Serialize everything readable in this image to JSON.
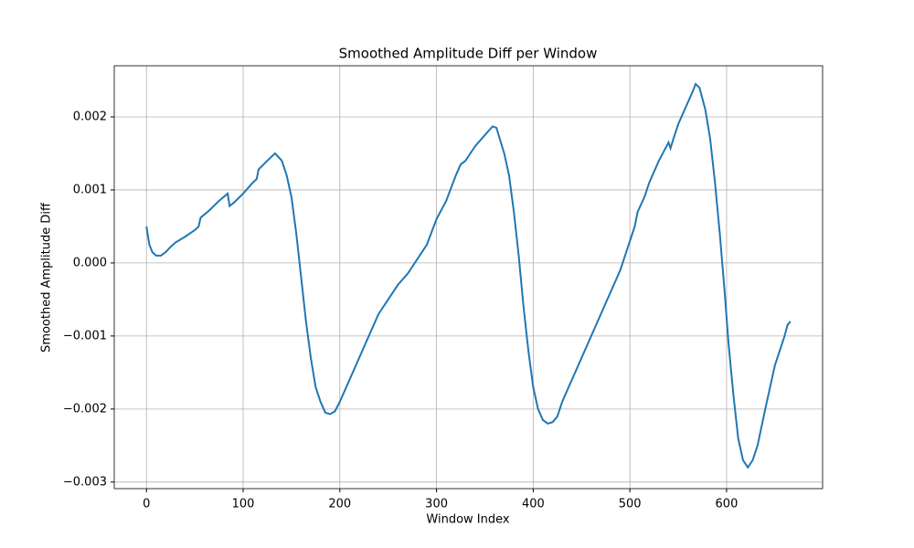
{
  "chart_data": {
    "type": "line",
    "title": "Smoothed Amplitude Diff per Window",
    "x_label": "Window Index",
    "y_label": "Smoothed Amplitude Diff",
    "x": [
      0,
      3,
      6,
      10,
      15,
      20,
      25,
      30,
      40,
      50,
      54,
      56,
      65,
      75,
      84,
      86,
      90,
      100,
      110,
      114,
      116,
      125,
      133,
      140,
      145,
      150,
      155,
      160,
      165,
      170,
      175,
      180,
      185,
      190,
      195,
      200,
      210,
      220,
      230,
      240,
      250,
      260,
      270,
      280,
      290,
      300,
      310,
      320,
      325,
      330,
      340,
      350,
      358,
      362,
      370,
      375,
      380,
      385,
      390,
      395,
      400,
      405,
      410,
      415,
      420,
      425,
      430,
      440,
      450,
      460,
      470,
      480,
      490,
      500,
      505,
      508,
      515,
      520,
      530,
      538,
      540,
      542,
      545,
      550,
      560,
      565,
      568,
      572,
      578,
      583,
      588,
      593,
      598,
      602,
      607,
      612,
      617,
      622,
      627,
      632,
      640,
      650,
      660,
      663,
      666
    ],
    "series": [
      {
        "name": "Smoothed Amplitude Diff",
        "color": "#1f77b4",
        "values": [
          0.0005,
          0.00025,
          0.00015,
          0.0001,
          0.0001,
          0.00015,
          0.00022,
          0.00028,
          0.00036,
          0.00045,
          0.0005,
          0.00062,
          0.00072,
          0.00085,
          0.00095,
          0.00078,
          0.00082,
          0.00095,
          0.0011,
          0.00115,
          0.00128,
          0.0014,
          0.0015,
          0.0014,
          0.0012,
          0.0009,
          0.0004,
          -0.0002,
          -0.0008,
          -0.0013,
          -0.0017,
          -0.0019,
          -0.00205,
          -0.00207,
          -0.00203,
          -0.0019,
          -0.0016,
          -0.0013,
          -0.001,
          -0.0007,
          -0.0005,
          -0.0003,
          -0.00015,
          5e-05,
          0.00025,
          0.0006,
          0.00085,
          0.0012,
          0.00135,
          0.0014,
          0.0016,
          0.00175,
          0.00187,
          0.00185,
          0.0015,
          0.0012,
          0.0007,
          0.0001,
          -0.0006,
          -0.0012,
          -0.0017,
          -0.002,
          -0.00215,
          -0.0022,
          -0.00218,
          -0.0021,
          -0.0019,
          -0.0016,
          -0.0013,
          -0.001,
          -0.0007,
          -0.0004,
          -0.0001,
          0.0003,
          0.0005,
          0.0007,
          0.0009,
          0.0011,
          0.0014,
          0.0016,
          0.00165,
          0.00157,
          0.0017,
          0.0019,
          0.0022,
          0.00235,
          0.00245,
          0.0024,
          0.0021,
          0.0017,
          0.0011,
          0.0004,
          -0.0004,
          -0.0011,
          -0.0018,
          -0.0024,
          -0.0027,
          -0.0028,
          -0.0027,
          -0.0025,
          -0.002,
          -0.0014,
          -0.001,
          -0.00085,
          -0.0008
        ]
      }
    ],
    "xlim": [
      -33.3,
      699.3
    ],
    "ylim": [
      -0.00309,
      0.0027
    ],
    "xticks": [
      0,
      100,
      200,
      300,
      400,
      500,
      600
    ],
    "yticks": [
      {
        "value": -0.003,
        "label": "−0.003"
      },
      {
        "value": -0.002,
        "label": "−0.002"
      },
      {
        "value": -0.001,
        "label": "−0.001"
      },
      {
        "value": 0,
        "label": "0.000"
      },
      0.001,
      0.002
    ],
    "grid": true
  }
}
